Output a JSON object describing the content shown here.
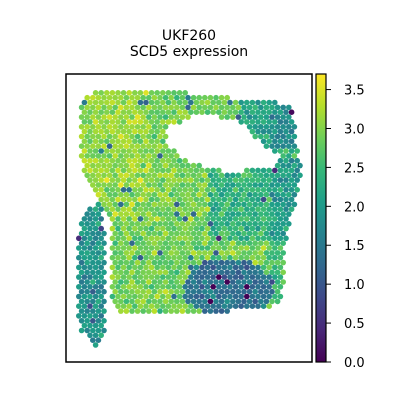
{
  "figure": {
    "title_line1": "UKF260",
    "title_line2": "SCD5 expression"
  },
  "chart_data": {
    "type": "heatmap",
    "subtype": "spatial-hexbin",
    "sample": "UKF260",
    "gene": "SCD5",
    "title": "UKF260\nSCD5 expression",
    "xlabel": "",
    "ylabel": "",
    "color_scale": {
      "colormap": "viridis",
      "min": 0.0,
      "max": 3.7,
      "ticks": [
        0.0,
        0.5,
        1.0,
        1.5,
        2.0,
        2.5,
        3.0,
        3.5
      ],
      "tick_labels": [
        "0.0",
        "0.5",
        "1.0",
        "1.5",
        "2.0",
        "2.5",
        "3.0",
        "3.5"
      ]
    },
    "regions": [
      {
        "region": "main-tissue-upper-left",
        "typical_value": 3.0
      },
      {
        "region": "main-tissue-center",
        "typical_value": 2.9
      },
      {
        "region": "main-tissue-upper-right",
        "typical_value": 2.2
      },
      {
        "region": "main-tissue-lower-right",
        "typical_value": 1.3
      },
      {
        "region": "left-strip",
        "typical_value": 1.9
      },
      {
        "region": "hole-upper-middle",
        "typical_value": null
      }
    ],
    "grid": false,
    "axes_ticks_visible": false,
    "legend": "colorbar-right"
  },
  "colors": {
    "axes_frame": "#000000",
    "background": "#ffffff",
    "viridis_stops": [
      "#440154",
      "#482878",
      "#3e4989",
      "#31688e",
      "#26828e",
      "#1f9e89",
      "#35b779",
      "#6ece58",
      "#b5de2b",
      "#fde725"
    ]
  }
}
